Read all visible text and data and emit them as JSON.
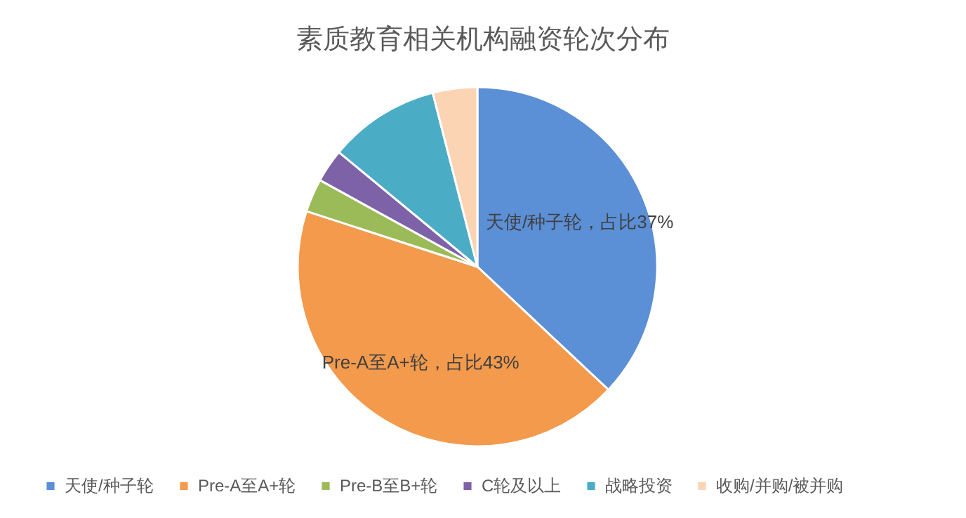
{
  "chart_data": {
    "type": "pie",
    "title": "素质教育相关机构融资轮次分布",
    "categories": [
      "天使/种子轮",
      "Pre-A至A+轮",
      "Pre-B至B+轮",
      "C轮及以上",
      "战略投资",
      "收购/并购/被并购"
    ],
    "values": [
      37,
      43,
      3,
      3,
      10,
      4
    ],
    "colors": [
      "#5b8fd6",
      "#f39a4c",
      "#9bbb59",
      "#7e62a8",
      "#4bacc6",
      "#fbd4b4"
    ],
    "value_labels": [
      "天使/种子轮，占比37%",
      "Pre-A至A+轮，占比43%",
      null,
      null,
      null,
      null
    ],
    "legend": "bottom"
  }
}
